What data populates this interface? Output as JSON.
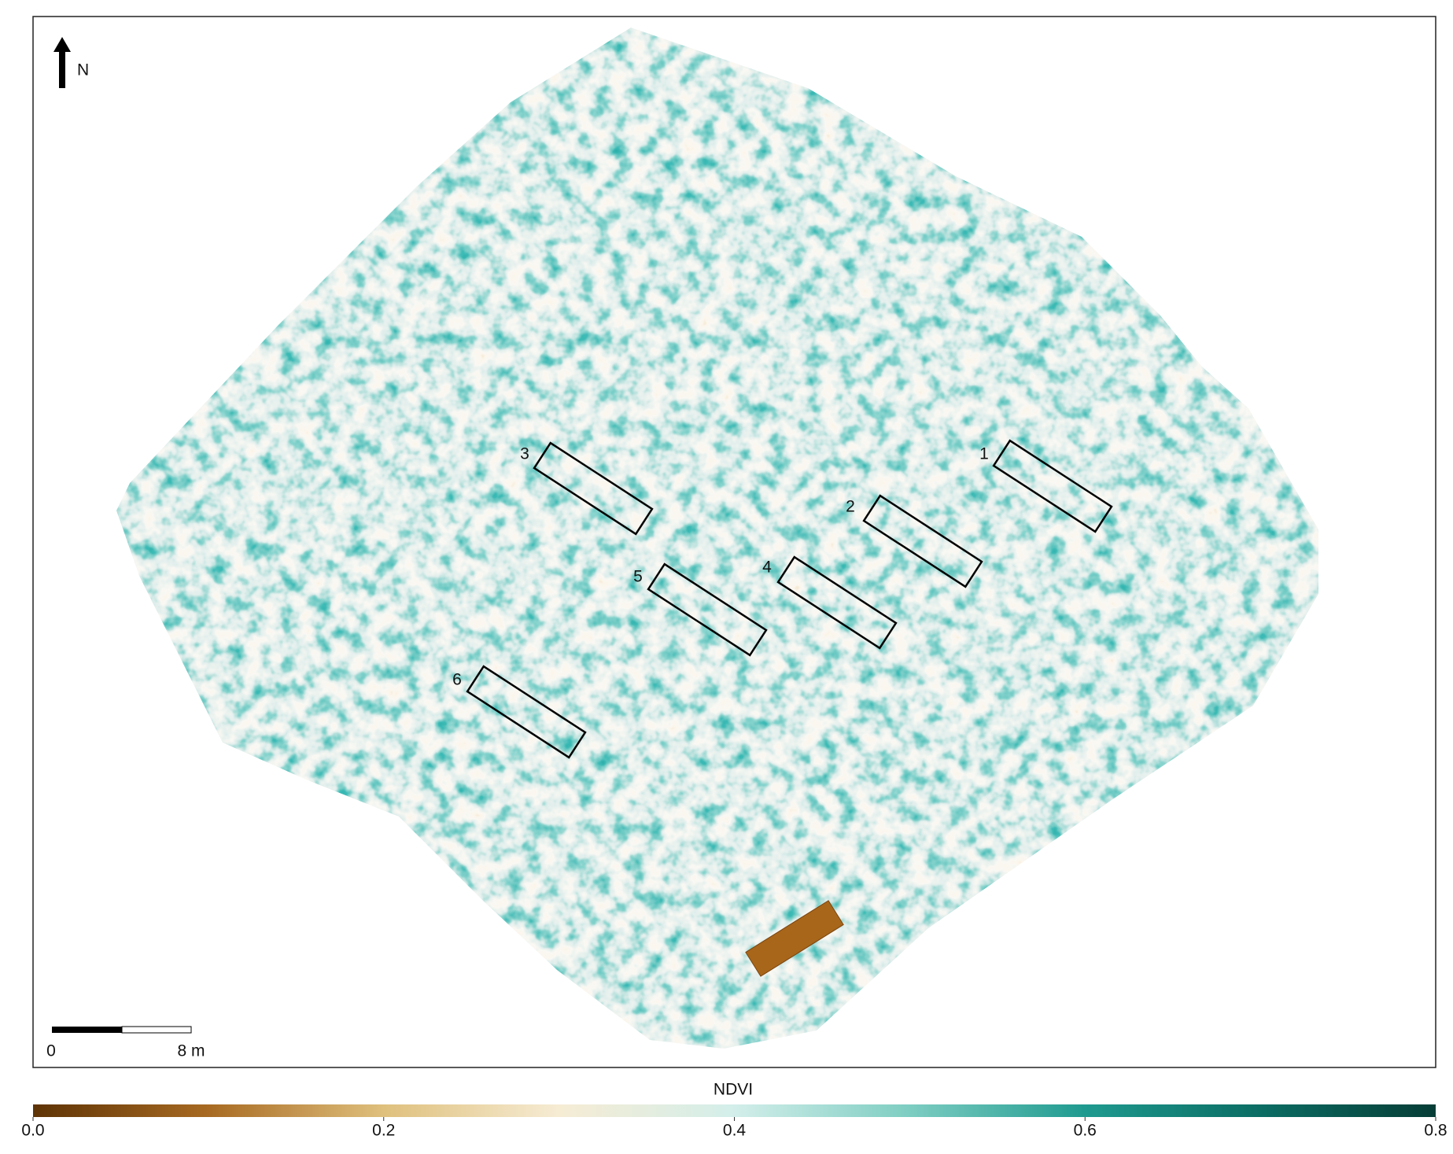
{
  "map": {
    "north_label": "N",
    "plots": [
      "1",
      "2",
      "3",
      "4",
      "5",
      "6"
    ],
    "scale_bar": {
      "labels": [
        "0",
        "8 m"
      ]
    },
    "colorbar": {
      "title": "NDVI",
      "lim": [
        0,
        0.8
      ],
      "ticks": [
        {
          "value": 0,
          "label": "0.0"
        },
        {
          "value": 0.2,
          "label": "0.2"
        },
        {
          "value": 0.4,
          "label": "0.4"
        },
        {
          "value": 0.6,
          "label": "0.6"
        },
        {
          "value": 0.8,
          "label": "0.8"
        }
      ],
      "colormap": [
        "#5e3305",
        "#a86a22",
        "#dfc07d",
        "#f6ecd4",
        "#d3eeea",
        "#7dcdc2",
        "#1f9a8f",
        "#0b6d64",
        "#063d36"
      ]
    }
  }
}
